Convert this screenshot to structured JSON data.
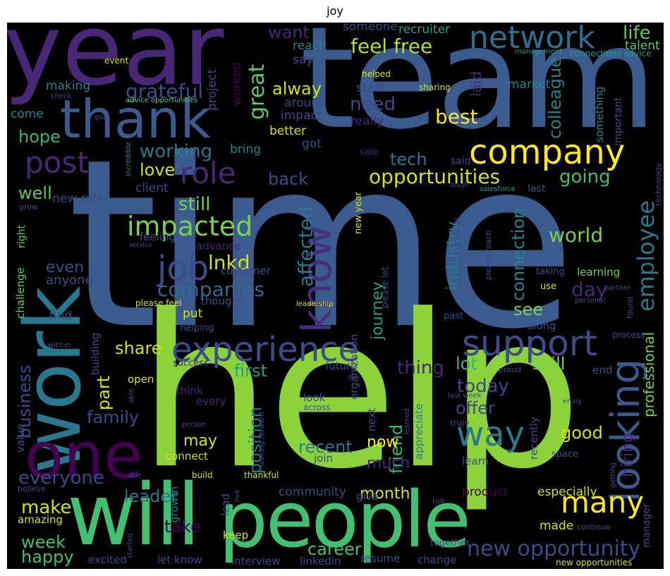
{
  "title": "joy",
  "words": [
    {
      "text": "time",
      "color": "#3b5b8f"
    },
    {
      "text": "help",
      "color": "#8cd33b"
    },
    {
      "text": "team",
      "color": "#3b5b8f"
    },
    {
      "text": "year",
      "color": "#482777"
    },
    {
      "text": "will",
      "color": "#43bf71"
    },
    {
      "text": "people",
      "color": "#43bf71"
    },
    {
      "text": "work",
      "color": "#2a788e"
    },
    {
      "text": "one",
      "color": "#440154"
    },
    {
      "text": "thank",
      "color": "#3b5b8f"
    },
    {
      "text": "company",
      "color": "#fde725"
    },
    {
      "text": "network",
      "color": "#2e6e8e"
    },
    {
      "text": "know",
      "color": "#472d7b"
    },
    {
      "text": "experience",
      "color": "#3e4a89"
    },
    {
      "text": "support",
      "color": "#3e4a89"
    },
    {
      "text": "looking",
      "color": "#3b5b8f"
    },
    {
      "text": "way",
      "color": "#2a788e"
    },
    {
      "text": "many",
      "color": "#fde725"
    },
    {
      "text": "job",
      "color": "#3e4a89"
    },
    {
      "text": "role",
      "color": "#482777"
    },
    {
      "text": "post",
      "color": "#482777"
    },
    {
      "text": "impacted",
      "color": "#7ad151"
    },
    {
      "text": "opportunities",
      "color": "#d2e21b"
    },
    {
      "text": "employee",
      "color": "#2a788e"
    },
    {
      "text": "new opportunity",
      "color": "#3e4a89"
    },
    {
      "text": "feel free",
      "color": "#b5de2b"
    },
    {
      "text": "grateful",
      "color": "#3e4a89"
    },
    {
      "text": "great",
      "color": "#5ec962"
    },
    {
      "text": "working",
      "color": "#2a788e"
    },
    {
      "text": "companies",
      "color": "#31688e"
    },
    {
      "text": "best",
      "color": "#fde725"
    },
    {
      "text": "need",
      "color": "#3e4a89"
    },
    {
      "text": "alway",
      "color": "#d2e21b"
    },
    {
      "text": "tech",
      "color": "#2a788e"
    },
    {
      "text": "life",
      "color": "#5ec962"
    },
    {
      "text": "colleague",
      "color": "#26828e"
    },
    {
      "text": "lnkd",
      "color": "#d2e21b"
    },
    {
      "text": "still",
      "color": "#7ad151"
    },
    {
      "text": "love",
      "color": "#d2e21b"
    },
    {
      "text": "affected",
      "color": "#2a788e"
    },
    {
      "text": "world",
      "color": "#7ad151"
    },
    {
      "text": "going",
      "color": "#43bf71"
    },
    {
      "text": "hope",
      "color": "#35b779"
    },
    {
      "text": "well",
      "color": "#5ec962"
    },
    {
      "text": "back",
      "color": "#3e4a89"
    },
    {
      "text": "day",
      "color": "#482777"
    },
    {
      "text": "see",
      "color": "#7ad151"
    },
    {
      "text": "connection",
      "color": "#26828e"
    },
    {
      "text": "industry",
      "color": "#2a788e"
    },
    {
      "text": "journey",
      "color": "#1f9e89"
    },
    {
      "text": "share",
      "color": "#d2e21b"
    },
    {
      "text": "first",
      "color": "#1f9e89"
    },
    {
      "text": "thing",
      "color": "#482777"
    },
    {
      "text": "today",
      "color": "#3e4a89"
    },
    {
      "text": "lot",
      "color": "#35b779"
    },
    {
      "text": "skill",
      "color": "#7ad151"
    },
    {
      "text": "offer",
      "color": "#3e4a89"
    },
    {
      "text": "part",
      "color": "#d2e21b"
    },
    {
      "text": "business",
      "color": "#3e4a89"
    },
    {
      "text": "family",
      "color": "#3e4a89"
    },
    {
      "text": "recent",
      "color": "#2a788e"
    },
    {
      "text": "position",
      "color": "#2a788e"
    },
    {
      "text": "friend",
      "color": "#35b779"
    },
    {
      "text": "much",
      "color": "#482777"
    },
    {
      "text": "now",
      "color": "#fde725"
    },
    {
      "text": "good",
      "color": "#d2e21b"
    },
    {
      "text": "hiring",
      "color": "#482777"
    },
    {
      "text": "everyone",
      "color": "#3e4a89"
    },
    {
      "text": "leader",
      "color": "#2a788e"
    },
    {
      "text": "make",
      "color": "#d2e21b"
    },
    {
      "text": "month",
      "color": "#d2e21b"
    },
    {
      "text": "week",
      "color": "#43bf71"
    },
    {
      "text": "happy",
      "color": "#43bf71"
    },
    {
      "text": "career",
      "color": "#43bf71"
    },
    {
      "text": "take",
      "color": "#440154"
    },
    {
      "text": "may",
      "color": "#d2e21b"
    },
    {
      "text": "even",
      "color": "#3e4a89"
    },
    {
      "text": "anyone",
      "color": "#3e4a89"
    },
    {
      "text": "professional",
      "color": "#7ad151"
    },
    {
      "text": "want",
      "color": "#482777"
    },
    {
      "text": "feel",
      "color": "#3e4a89"
    },
    {
      "text": "free",
      "color": "#3e4a89"
    }
  ],
  "small_words": [
    "someone",
    "recruiter",
    "talent",
    "reach",
    "event",
    "say",
    "project",
    "making",
    "worked",
    "helped",
    "laid",
    "market",
    "management",
    "connections advice",
    "check",
    "sharing",
    "around",
    "start",
    "come",
    "advice opportunities",
    "impact",
    "goal",
    "really",
    "incredible",
    "got",
    "bring",
    "better",
    "sale",
    "said",
    "client",
    "new role",
    "last",
    "salesforce",
    "grow",
    "right",
    "feeling",
    "tough",
    "technology",
    "important",
    "something",
    "advance",
    "customer",
    "service",
    "organization",
    "please let",
    "individual",
    "please reach",
    "partner",
    "taking",
    "use",
    "personal",
    "learning",
    "challenge",
    "value",
    "thought",
    "please feel",
    "leadership",
    "helping",
    "find",
    "past",
    "found",
    "building",
    "within",
    "put",
    "process",
    "along",
    "success",
    "future",
    "proud",
    "open",
    "able",
    "end",
    "think",
    "every",
    "person",
    "last week",
    "enjoy",
    "learned",
    "looking forward",
    "across",
    "truly",
    "recently",
    "space",
    "connect",
    "join",
    "learn",
    "appreciate",
    "due",
    "getting",
    "build",
    "thankful",
    "live",
    "lead",
    "growth",
    "believe",
    "community",
    "give",
    "product",
    "folk",
    "especially",
    "manager",
    "continue",
    "keep",
    "made",
    "amazing",
    "started",
    "together",
    "excited",
    "let know",
    "interview",
    "linkedin",
    "resume",
    "change",
    "new year",
    "new opportunities",
    "look",
    "next",
    "don",
    "always",
    "hope"
  ]
}
